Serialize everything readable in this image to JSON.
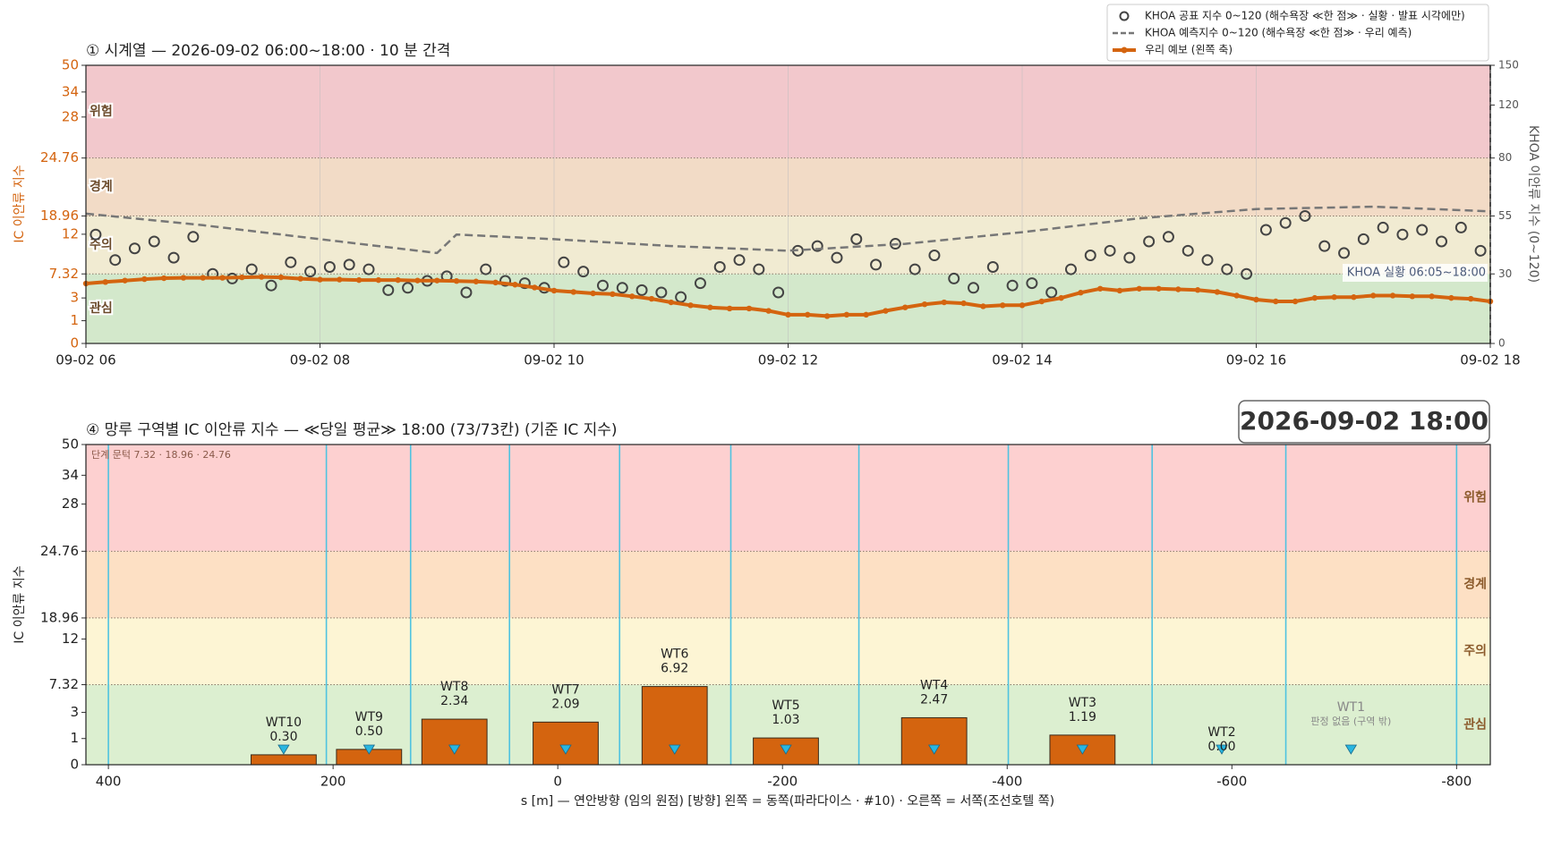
{
  "chart_data": [
    {
      "type": "line",
      "title": "① 시계열 — 2026-09-02 06:00~18:00 · 10 분 간격",
      "y_label": "IC 이안류 지수",
      "y2_label": "KHOA 이안류 지수 (0~120)",
      "annotation": "KHOA 실황 06:05~18:00",
      "stages": [
        "관심",
        "주의",
        "경계",
        "위험"
      ],
      "stage_bounds": [
        7.32,
        18.96,
        24.76
      ],
      "band_colors": [
        "#d3e8cb",
        "#f1ebd2",
        "#f2dbc6",
        "#f2c8cc"
      ],
      "xlim": [
        "06:00",
        "18:00"
      ],
      "xticks": [
        {
          "value": "06:00",
          "label": "09-02 06"
        },
        {
          "value": "08:00",
          "label": "09-02 08"
        },
        {
          "value": "10:00",
          "label": "09-02 10"
        },
        {
          "value": "12:00",
          "label": "09-02 12"
        },
        {
          "value": "14:00",
          "label": "09-02 14"
        },
        {
          "value": "16:00",
          "label": "09-02 16"
        },
        {
          "value": "18:00",
          "label": "09-02 18"
        }
      ],
      "ylim": [
        0,
        50
      ],
      "yticks": [
        0,
        1,
        3,
        7.32,
        12,
        18.96,
        24.76,
        28,
        34,
        50
      ],
      "y2lim": [
        0,
        150
      ],
      "y2ticks": [
        0,
        30,
        55,
        80,
        120,
        150
      ],
      "y2_stage_bounds": [
        30,
        55,
        80
      ],
      "grid": true,
      "legend": "upper right",
      "series": [
        {
          "name": "KHOA 공표 지수 0~120 (해수욕장 ≪한 점≫ · 실황 · 발표 시각에만)",
          "mark": "marker",
          "axis": "y2",
          "color": "#444444",
          "x": [
            "06:05",
            "06:15",
            "06:25",
            "06:35",
            "06:45",
            "06:55",
            "07:05",
            "07:15",
            "07:25",
            "07:35",
            "07:45",
            "07:55",
            "08:05",
            "08:15",
            "08:25",
            "08:35",
            "08:45",
            "08:55",
            "09:05",
            "09:15",
            "09:25",
            "09:35",
            "09:45",
            "09:55",
            "10:05",
            "10:15",
            "10:25",
            "10:35",
            "10:45",
            "10:55",
            "11:05",
            "11:15",
            "11:25",
            "11:35",
            "11:45",
            "11:55",
            "12:05",
            "12:15",
            "12:25",
            "12:35",
            "12:45",
            "12:55",
            "13:05",
            "13:15",
            "13:25",
            "13:35",
            "13:45",
            "13:55",
            "14:05",
            "14:15",
            "14:25",
            "14:35",
            "14:45",
            "14:55",
            "15:05",
            "15:15",
            "15:25",
            "15:35",
            "15:45",
            "15:55",
            "16:05",
            "16:15",
            "16:25",
            "16:35",
            "16:45",
            "16:55",
            "17:05",
            "17:15",
            "17:25",
            "17:35",
            "17:45",
            "17:55"
          ],
          "values": [
            47,
            36,
            41,
            44,
            37,
            46,
            30,
            28,
            32,
            25,
            35,
            31,
            33,
            34,
            32,
            23,
            24,
            27,
            29,
            22,
            32,
            27,
            26,
            24,
            35,
            31,
            25,
            24,
            23,
            22,
            20,
            26,
            33,
            36,
            32,
            22,
            40,
            42,
            37,
            45,
            34,
            43,
            32,
            38,
            28,
            24,
            33,
            25,
            26,
            22,
            32,
            38,
            40,
            37,
            44,
            46,
            40,
            36,
            32,
            30,
            49,
            52,
            55,
            42,
            39,
            45,
            50,
            47,
            49,
            44,
            50,
            40
          ]
        },
        {
          "name": "KHOA 예측지수 0~120 (해수욕장 ≪한 점≫ · 우리 예측)",
          "mark": "dashed",
          "axis": "y2",
          "color": "#777777",
          "x": [
            "06:00",
            "07:00",
            "08:00",
            "09:00",
            "09:10",
            "10:00",
            "11:00",
            "12:00",
            "13:00",
            "14:00",
            "15:00",
            "16:00",
            "17:00",
            "18:00"
          ],
          "values": [
            56,
            51,
            45,
            39,
            47,
            45,
            42,
            40,
            43,
            48,
            54,
            58,
            59,
            57
          ]
        },
        {
          "name": "우리 예보 (왼쪽 축)",
          "mark": "line",
          "color": "#d4640f",
          "x": [
            "06:00",
            "06:10",
            "06:20",
            "06:30",
            "06:40",
            "06:50",
            "07:00",
            "07:10",
            "07:20",
            "07:30",
            "07:40",
            "07:50",
            "08:00",
            "08:10",
            "08:20",
            "08:30",
            "08:40",
            "08:50",
            "09:00",
            "09:10",
            "09:20",
            "09:30",
            "09:40",
            "09:50",
            "10:00",
            "10:10",
            "10:20",
            "10:30",
            "10:40",
            "10:50",
            "11:00",
            "11:10",
            "11:20",
            "11:30",
            "11:40",
            "11:50",
            "12:00",
            "12:10",
            "12:20",
            "12:30",
            "12:40",
            "12:50",
            "13:00",
            "13:10",
            "13:20",
            "13:30",
            "13:40",
            "13:50",
            "14:00",
            "14:10",
            "14:20",
            "14:30",
            "14:40",
            "14:50",
            "15:00",
            "15:10",
            "15:20",
            "15:30",
            "15:40",
            "15:50",
            "16:00",
            "16:10",
            "16:20",
            "16:30",
            "16:40",
            "16:50",
            "17:00",
            "17:10",
            "17:20",
            "17:30",
            "17:40",
            "17:50",
            "18:00"
          ],
          "values": [
            5.2,
            5.5,
            5.8,
            6.1,
            6.3,
            6.4,
            6.4,
            6.4,
            6.5,
            6.6,
            6.5,
            6.2,
            6.0,
            6.0,
            5.9,
            5.9,
            5.9,
            5.8,
            5.8,
            5.7,
            5.6,
            5.4,
            5.0,
            4.5,
            4.0,
            3.8,
            3.6,
            3.5,
            3.2,
            2.9,
            2.5,
            2.2,
            2.0,
            1.9,
            1.9,
            1.7,
            1.4,
            1.4,
            1.3,
            1.4,
            1.4,
            1.7,
            2.0,
            2.3,
            2.5,
            2.4,
            2.1,
            2.2,
            2.2,
            2.6,
            3.0,
            3.7,
            4.3,
            4.0,
            4.3,
            4.3,
            4.2,
            4.1,
            3.8,
            3.3,
            2.8,
            2.6,
            2.6,
            3.0,
            3.1,
            3.1,
            3.3,
            3.3,
            3.2,
            3.2,
            3.0,
            2.9,
            2.6
          ]
        }
      ]
    },
    {
      "type": "bar",
      "title": "④ 망루 구역별 IC 이안류 지수 — ≪당일 평균≫ 18:00  (73/73칸)   (기준 IC 지수)",
      "timestamp": "2026-09-02  18:00",
      "y_label": "IC 이안류 지수",
      "x_label": "s [m] — 연안방향 (임의 원점)     [방향] 왼쪽 = 동쪽(파라다이스 · #10) · 오른쪽 = 서쪽(조선호텔 쪽)",
      "threshold_note": "단계 문턱 7.32 · 18.96 · 24.76",
      "stages": [
        "관심",
        "주의",
        "경계",
        "위험"
      ],
      "stage_bounds": [
        7.32,
        18.96,
        24.76
      ],
      "band_colors": [
        "#dcefd0",
        "#fdf5d4",
        "#fde0c4",
        "#fdd0d0"
      ],
      "xlim": [
        420,
        -830
      ],
      "xticks": [
        400,
        200,
        0,
        -200,
        -400,
        -600,
        -800
      ],
      "ylim": [
        0,
        50
      ],
      "yticks": [
        0,
        1,
        3,
        7.32,
        12,
        18.96,
        24.76,
        28,
        34,
        50
      ],
      "zone_bounds": [
        400,
        206,
        131,
        43,
        -55,
        -154,
        -268,
        -401,
        -529,
        -648,
        -800
      ],
      "zone_color": "#4fc3e0",
      "color": "#d4640f",
      "marker_color": "#29b6e0",
      "categories": [
        "WT10",
        "WT9",
        "WT8",
        "WT7",
        "WT6",
        "WT5",
        "WT4",
        "WT3",
        "WT2",
        "WT1"
      ],
      "x": [
        244,
        168,
        92,
        -7,
        -104,
        -203,
        -335,
        -467,
        -591,
        -706
      ],
      "values": [
        0.3,
        0.5,
        2.34,
        2.09,
        6.92,
        1.03,
        2.47,
        1.19,
        0.0,
        null
      ],
      "value_labels": [
        "0.30",
        "0.50",
        "2.34",
        "2.09",
        "6.92",
        "1.03",
        "2.47",
        "1.19",
        "0.00",
        "판정 없음 (구역 밖)"
      ]
    }
  ]
}
